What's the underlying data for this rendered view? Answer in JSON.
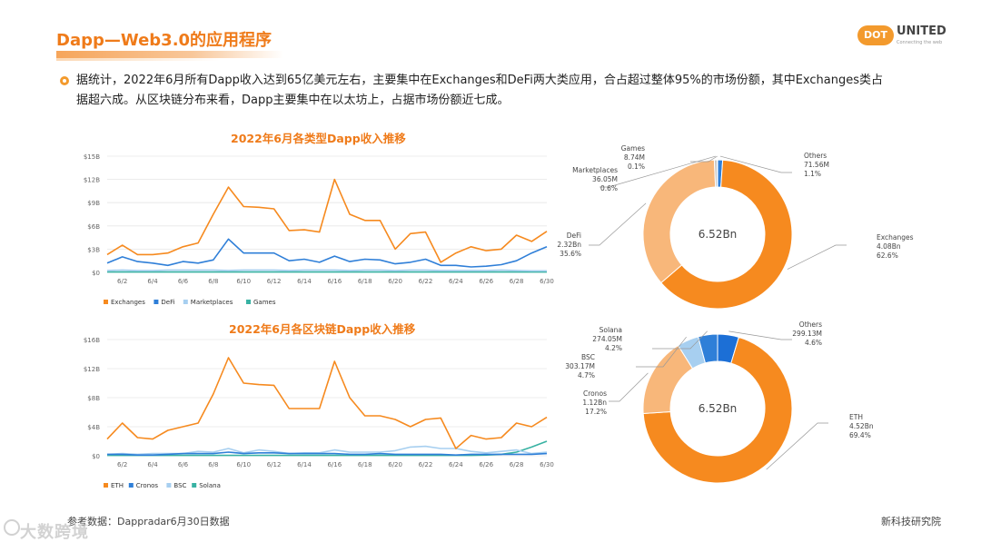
{
  "header": {
    "title": "Dapp—Web3.0的应用程序",
    "logo_dot": "DOT",
    "logo_text": "UNITED",
    "logo_sub": "Connecting the web"
  },
  "intro": "据统计，2022年6月所有Dapp收入达到65亿美元左右，主要集中在Exchanges和DeFi两大类应用，合占超过整体95%的市场份额，其中Exchanges类占据超六成。从区块链分布来看，Dapp主要集中在以太坊上，占据市场份额近七成。",
  "footer": {
    "source": "参考数据：Dappradar6月30日数据",
    "org": "新科技研究院",
    "watermark": "大数跨境"
  },
  "colors": {
    "orange": "#f68a1f",
    "light_orange": "#f8b77a",
    "blue": "#2f7fd8",
    "light_blue": "#a7cff0",
    "teal": "#38b2a3",
    "grid": "#e6e6e6",
    "axis_text": "#666666"
  },
  "chart_data": [
    {
      "type": "line",
      "title": "2022年6月各类型Dapp收入推移",
      "x": [
        1,
        2,
        3,
        4,
        5,
        6,
        7,
        8,
        9,
        10,
        11,
        12,
        13,
        14,
        15,
        16,
        17,
        18,
        19,
        20,
        21,
        22,
        23,
        24,
        25,
        26,
        27,
        28,
        29,
        30
      ],
      "x_ticks": [
        "6/2",
        "6/4",
        "6/6",
        "6/8",
        "6/10",
        "6/12",
        "6/14",
        "6/16",
        "6/18",
        "6/20",
        "6/22",
        "6/24",
        "6/26",
        "6/28",
        "6/30"
      ],
      "y_ticks": [
        "$0",
        "$3B",
        "$6B",
        "$9B",
        "$12B",
        "$15B"
      ],
      "ylim": [
        0,
        15
      ],
      "series": [
        {
          "name": "Exchanges",
          "color": "#f68a1f",
          "values": [
            2.3,
            3.5,
            2.3,
            2.3,
            2.5,
            3.3,
            3.8,
            7.5,
            11.0,
            8.5,
            8.4,
            8.2,
            5.4,
            5.5,
            5.2,
            12.0,
            7.5,
            6.7,
            6.7,
            3.0,
            5.0,
            5.2,
            1.3,
            2.5,
            3.3,
            2.8,
            3.0,
            4.8,
            4.0,
            5.3
          ]
        },
        {
          "name": "DeFi",
          "color": "#2f7fd8",
          "values": [
            1.2,
            2.0,
            1.4,
            1.2,
            0.9,
            1.4,
            1.2,
            1.6,
            4.3,
            2.5,
            2.5,
            2.5,
            1.5,
            1.7,
            1.3,
            2.1,
            1.4,
            1.7,
            1.6,
            1.1,
            1.3,
            1.7,
            0.9,
            0.9,
            0.7,
            0.8,
            1.0,
            1.5,
            2.5,
            3.3
          ]
        },
        {
          "name": "Marketplaces",
          "color": "#a7cff0",
          "values": [
            0.25,
            0.3,
            0.25,
            0.25,
            0.3,
            0.3,
            0.3,
            0.3,
            0.25,
            0.3,
            0.3,
            0.3,
            0.25,
            0.3,
            0.3,
            0.3,
            0.25,
            0.3,
            0.3,
            0.25,
            0.3,
            0.3,
            0.25,
            0.25,
            0.25,
            0.25,
            0.3,
            0.25,
            0.2,
            0.2
          ]
        },
        {
          "name": "Games",
          "color": "#38b2a3",
          "values": [
            0.05,
            0.05,
            0.05,
            0.05,
            0.05,
            0.05,
            0.05,
            0.05,
            0.05,
            0.05,
            0.05,
            0.05,
            0.05,
            0.05,
            0.05,
            0.05,
            0.05,
            0.05,
            0.05,
            0.05,
            0.05,
            0.05,
            0.05,
            0.05,
            0.05,
            0.05,
            0.05,
            0.05,
            0.05,
            0.05
          ]
        }
      ]
    },
    {
      "type": "line",
      "title": "2022年6月各区块链Dapp收入推移",
      "x": [
        1,
        2,
        3,
        4,
        5,
        6,
        7,
        8,
        9,
        10,
        11,
        12,
        13,
        14,
        15,
        16,
        17,
        18,
        19,
        20,
        21,
        22,
        23,
        24,
        25,
        26,
        27,
        28,
        29,
        30
      ],
      "x_ticks": [
        "6/2",
        "6/4",
        "6/6",
        "6/8",
        "6/10",
        "6/12",
        "6/14",
        "6/16",
        "6/18",
        "6/20",
        "6/22",
        "6/24",
        "6/26",
        "6/28",
        "6/30"
      ],
      "y_ticks": [
        "$0",
        "$4B",
        "$8B",
        "$12B",
        "$16B"
      ],
      "ylim": [
        0,
        16
      ],
      "series": [
        {
          "name": "ETH",
          "color": "#f68a1f",
          "values": [
            2.3,
            4.5,
            2.5,
            2.3,
            3.5,
            4.0,
            4.5,
            8.5,
            13.5,
            10.0,
            9.8,
            9.7,
            6.5,
            6.5,
            6.5,
            13.0,
            8.0,
            5.5,
            5.5,
            5.0,
            4.0,
            5.0,
            5.2,
            1.0,
            2.8,
            2.3,
            2.5,
            4.5,
            4.0,
            5.3
          ]
        },
        {
          "name": "Cronos",
          "color": "#2f7fd8",
          "values": [
            0.2,
            0.2,
            0.1,
            0.1,
            0.2,
            0.3,
            0.3,
            0.3,
            0.5,
            0.3,
            0.4,
            0.4,
            0.3,
            0.3,
            0.3,
            0.3,
            0.2,
            0.2,
            0.3,
            0.2,
            0.2,
            0.2,
            0.2,
            0.1,
            0.2,
            0.2,
            0.2,
            0.2,
            0.2,
            0.3
          ]
        },
        {
          "name": "BSC",
          "color": "#a7cff0",
          "values": [
            0.2,
            0.3,
            0.2,
            0.3,
            0.3,
            0.3,
            0.6,
            0.5,
            1.0,
            0.4,
            0.8,
            0.6,
            0.3,
            0.4,
            0.4,
            0.8,
            0.5,
            0.5,
            0.5,
            0.7,
            1.2,
            1.3,
            1.0,
            1.0,
            0.6,
            0.4,
            0.6,
            0.8,
            0.3,
            0.5
          ]
        },
        {
          "name": "Solana",
          "color": "#38b2a3",
          "values": [
            0.05,
            0.05,
            0.05,
            0.05,
            0.05,
            0.05,
            0.05,
            0.05,
            0.05,
            0.05,
            0.05,
            0.05,
            0.05,
            0.05,
            0.05,
            0.05,
            0.05,
            0.05,
            0.05,
            0.05,
            0.05,
            0.05,
            0.05,
            0.05,
            0.05,
            0.1,
            0.2,
            0.5,
            1.2,
            2.0
          ]
        }
      ]
    },
    {
      "type": "pie",
      "center_label": "6.52Bn",
      "slices": [
        {
          "name": "Exchanges",
          "value_label": "4.08Bn",
          "percent": 62.6,
          "pct_label": "62.6%",
          "color": "#f68a1f"
        },
        {
          "name": "DeFi",
          "value_label": "2.32Bn",
          "percent": 35.6,
          "pct_label": "35.6%",
          "color": "#f8b77a"
        },
        {
          "name": "Marketplaces",
          "value_label": "36.05M",
          "percent": 0.6,
          "pct_label": "0.6%",
          "color": "#c9c9c9"
        },
        {
          "name": "Games",
          "value_label": "8.74M",
          "percent": 0.1,
          "pct_label": "0.1%",
          "color": "#a7cff0"
        },
        {
          "name": "Others",
          "value_label": "71.56M",
          "percent": 1.1,
          "pct_label": "1.1%",
          "color": "#2f7fd8"
        }
      ]
    },
    {
      "type": "pie",
      "center_label": "6.52Bn",
      "slices": [
        {
          "name": "ETH",
          "value_label": "4.52Bn",
          "percent": 69.4,
          "pct_label": "69.4%",
          "color": "#f68a1f"
        },
        {
          "name": "Cronos",
          "value_label": "1.12Bn",
          "percent": 17.2,
          "pct_label": "17.2%",
          "color": "#f8b77a"
        },
        {
          "name": "BSC",
          "value_label": "303.17M",
          "percent": 4.7,
          "pct_label": "4.7%",
          "color": "#a7cff0"
        },
        {
          "name": "Solana",
          "value_label": "274.05M",
          "percent": 4.2,
          "pct_label": "4.2%",
          "color": "#2f7fd8"
        },
        {
          "name": "Others",
          "value_label": "299.13M",
          "percent": 4.6,
          "pct_label": "4.6%",
          "color": "#1c6fd6"
        }
      ]
    }
  ]
}
